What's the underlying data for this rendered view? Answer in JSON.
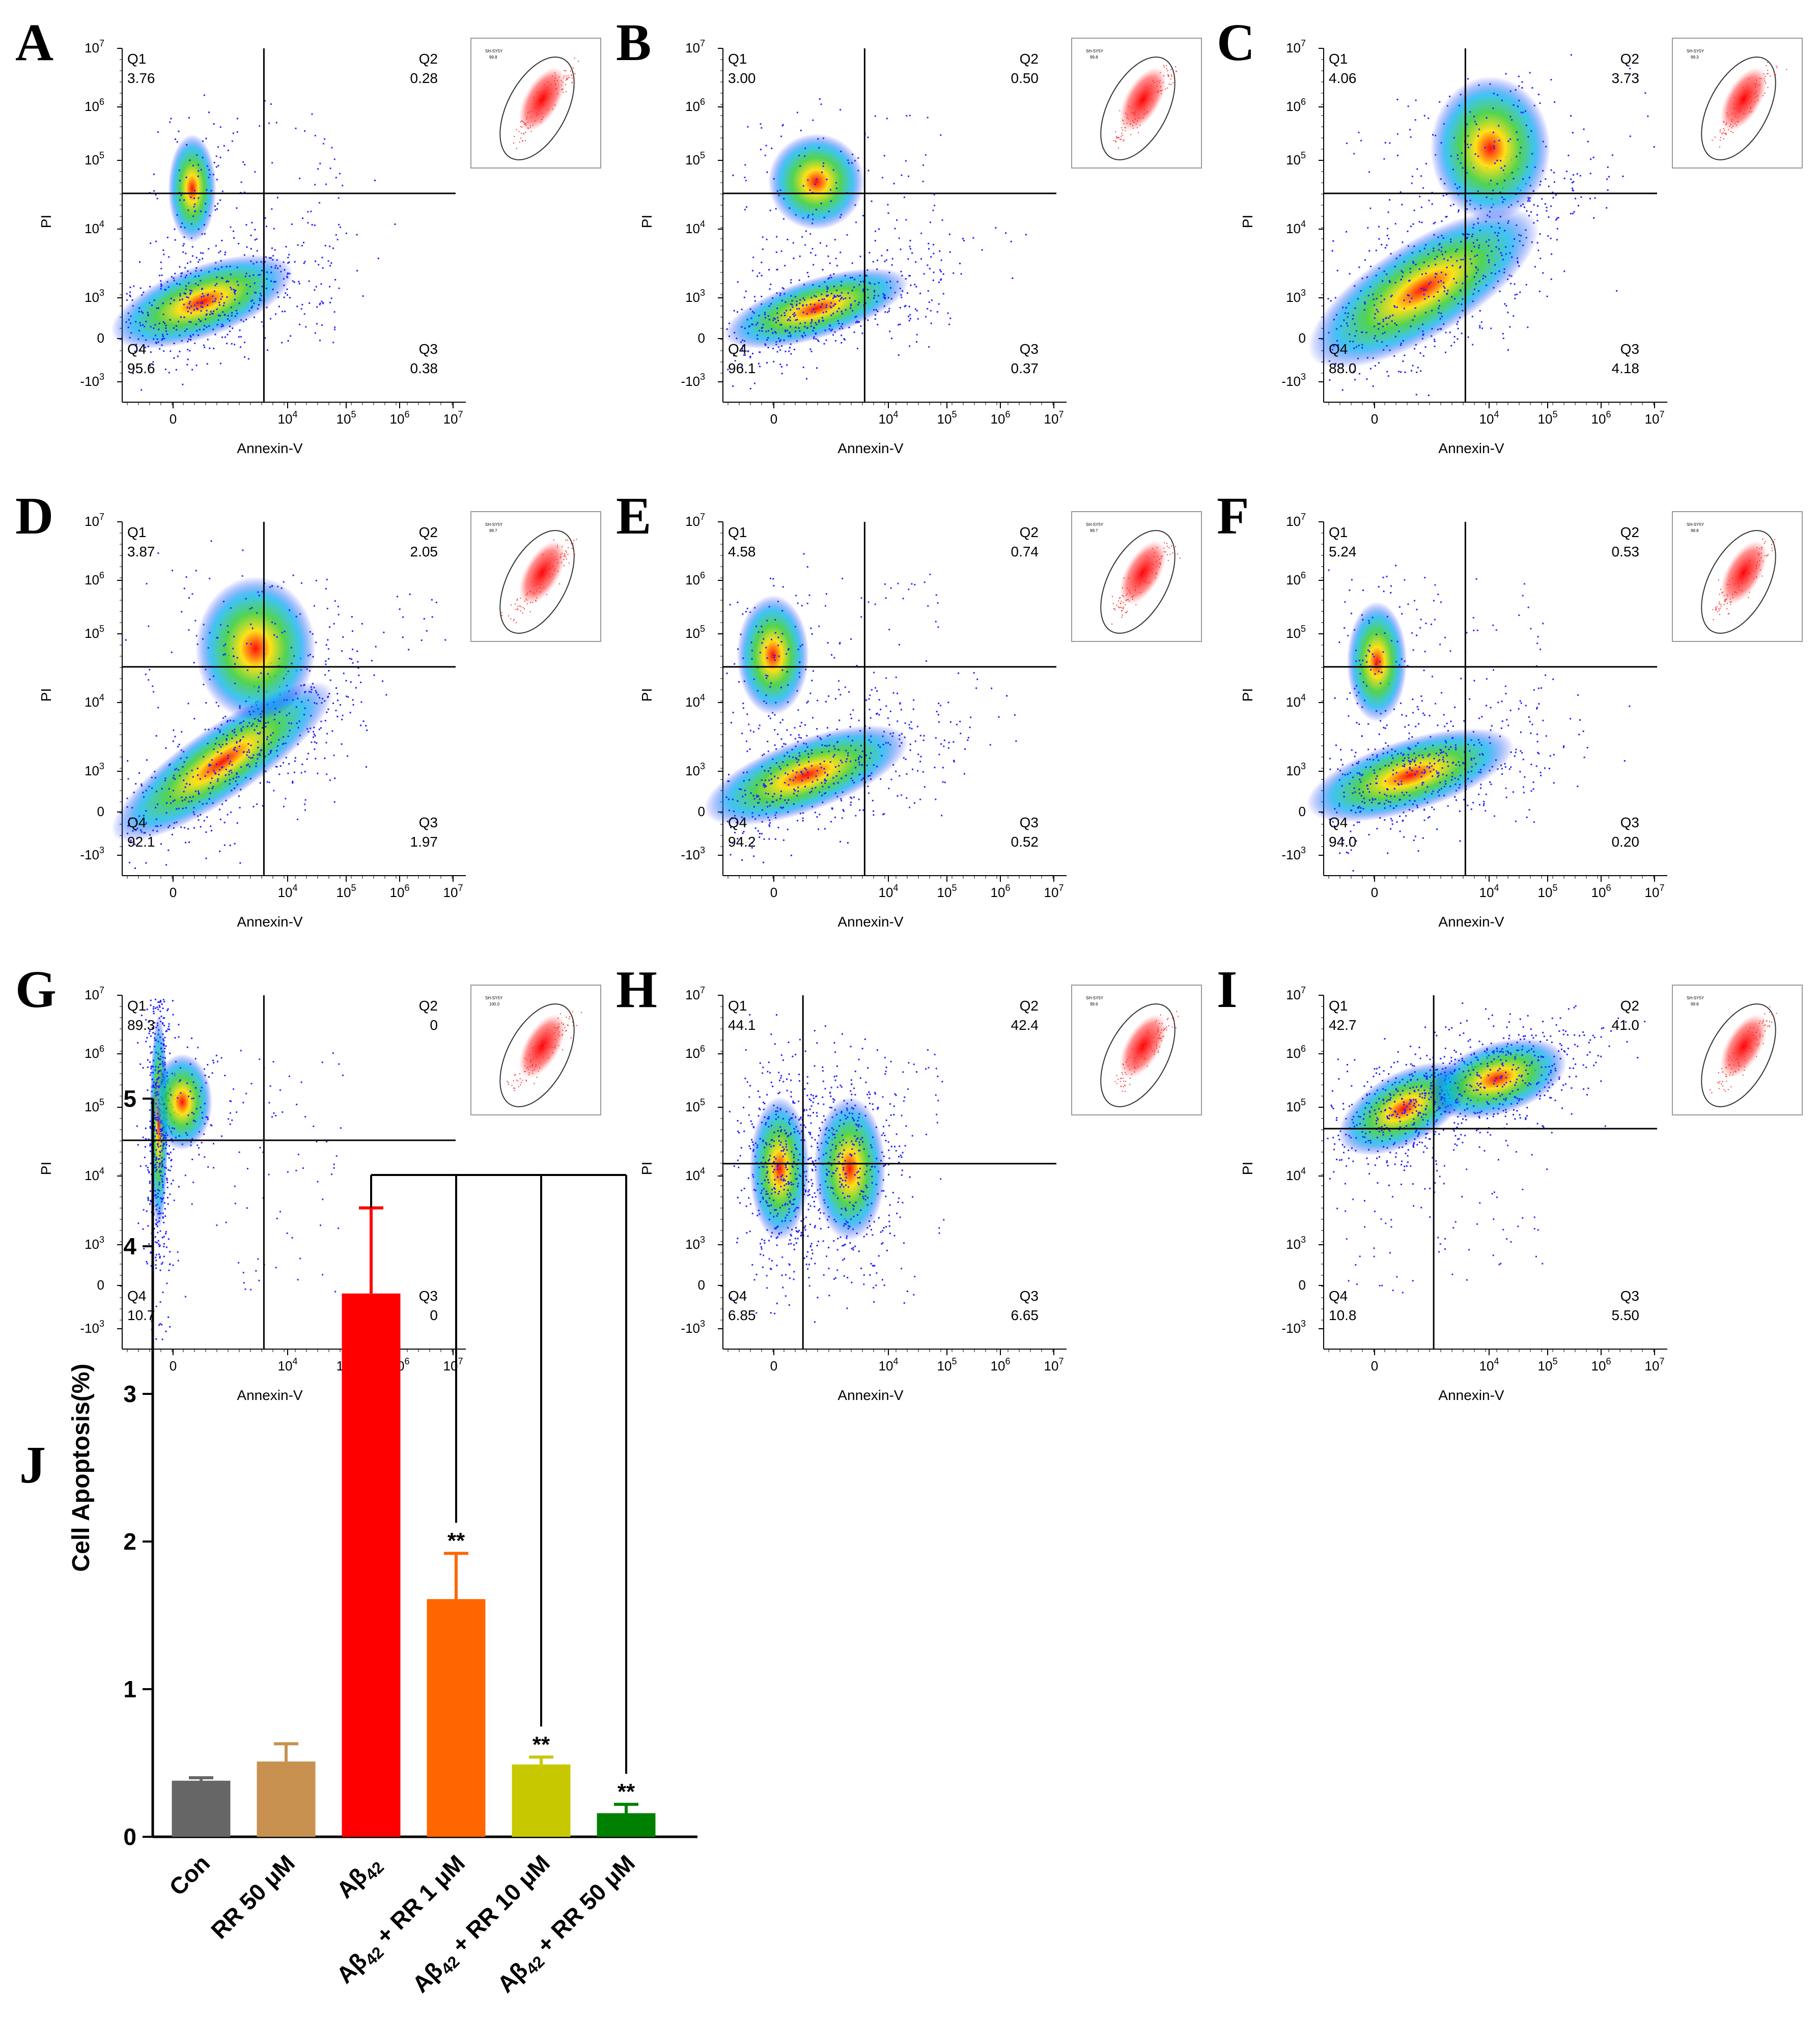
{
  "panels": [
    {
      "letter": "A",
      "q1": "3.76",
      "q2": "0.28",
      "q3": "0.38",
      "q4": "95.6",
      "inset_value": "99.8"
    },
    {
      "letter": "B",
      "q1": "3.00",
      "q2": "0.50",
      "q3": "0.37",
      "q4": "96.1",
      "inset_value": "99.8"
    },
    {
      "letter": "C",
      "q1": "4.06",
      "q2": "3.73",
      "q3": "4.18",
      "q4": "88.0",
      "inset_value": "99.3"
    },
    {
      "letter": "D",
      "q1": "3.87",
      "q2": "2.05",
      "q3": "1.97",
      "q4": "92.1",
      "inset_value": "99.7"
    },
    {
      "letter": "E",
      "q1": "4.58",
      "q2": "0.74",
      "q3": "0.52",
      "q4": "94.2",
      "inset_value": "99.7"
    },
    {
      "letter": "F",
      "q1": "5.24",
      "q2": "0.53",
      "q3": "0.20",
      "q4": "94.0",
      "inset_value": "99.8"
    },
    {
      "letter": "G",
      "q1": "89.3",
      "q2": "0",
      "q3": "0",
      "q4": "10.7",
      "inset_value": "100.0"
    },
    {
      "letter": "H",
      "q1": "44.1",
      "q2": "42.4",
      "q3": "6.65",
      "q4": "6.85",
      "inset_value": "99.6"
    },
    {
      "letter": "I",
      "q1": "42.7",
      "q2": "41.0",
      "q3": "5.50",
      "q4": "10.8",
      "inset_value": "99.8"
    }
  ],
  "common": {
    "xlabel": "Annexin-V",
    "ylabel": "PI",
    "q1_label": "Q1",
    "q2_label": "Q2",
    "q3_label": "Q3",
    "q4_label": "Q4",
    "inset_title": "SH-SY5Y",
    "x_ticks": [
      {
        "label": "0",
        "exp": ""
      },
      {
        "label": "10",
        "exp": "4"
      },
      {
        "label": "10",
        "exp": "5"
      },
      {
        "label": "10",
        "exp": "6"
      },
      {
        "label": "10",
        "exp": "7"
      }
    ],
    "y_ticks": [
      {
        "label": "10",
        "exp": "7"
      },
      {
        "label": "10",
        "exp": "6"
      },
      {
        "label": "10",
        "exp": "5"
      },
      {
        "label": "10",
        "exp": "4"
      },
      {
        "label": "10",
        "exp": "3"
      },
      {
        "label": "0",
        "exp": ""
      },
      {
        "label": "-10",
        "exp": "3"
      }
    ]
  },
  "chart_data": {
    "type": "bar",
    "panel_letter": "J",
    "ylabel": "Cell Apoptosis(%)",
    "ylim": [
      0,
      5
    ],
    "yticks": [
      "0",
      "1",
      "2",
      "3",
      "4",
      "5"
    ],
    "categories": [
      "Con",
      "RR 50 μM",
      "Aβ42",
      "Aβ42 + RR 1 μM",
      "Aβ42 + RR 10 μM",
      "Aβ42 + RR 50 μM"
    ],
    "values": [
      0.38,
      0.51,
      3.68,
      1.61,
      0.49,
      0.16
    ],
    "errors": [
      0.02,
      0.12,
      0.58,
      0.31,
      0.05,
      0.06
    ],
    "colors": [
      "#666666",
      "#C8914F",
      "#FF0000",
      "#FF6600",
      "#C8C800",
      "#008000"
    ],
    "significance": [
      "",
      "",
      "",
      "**",
      "**",
      "**"
    ],
    "comparison_bracket_from": "Aβ42"
  }
}
